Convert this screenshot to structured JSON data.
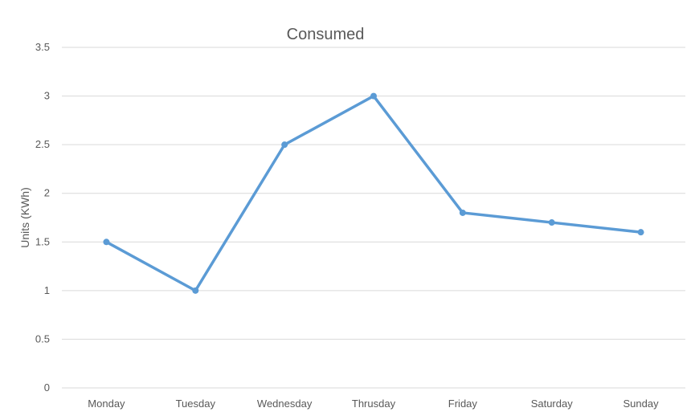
{
  "chart_data": {
    "type": "line",
    "title": "Consumed",
    "xlabel": "",
    "ylabel": "Units (KWh)",
    "categories": [
      "Monday",
      "Tuesday",
      "Wednesday",
      "Thrusday",
      "Friday",
      "Saturday",
      "Sunday"
    ],
    "series": [
      {
        "values": [
          1.5,
          1.0,
          2.5,
          3.0,
          1.8,
          1.7,
          1.6
        ],
        "color": "#5b9bd5"
      }
    ],
    "ylim": [
      0,
      3.5
    ],
    "yticks": [
      "0",
      "0.5",
      "1",
      "1.5",
      "2",
      "2.5",
      "3",
      "3.5"
    ],
    "grid": true,
    "legend": "none",
    "markers": true
  }
}
